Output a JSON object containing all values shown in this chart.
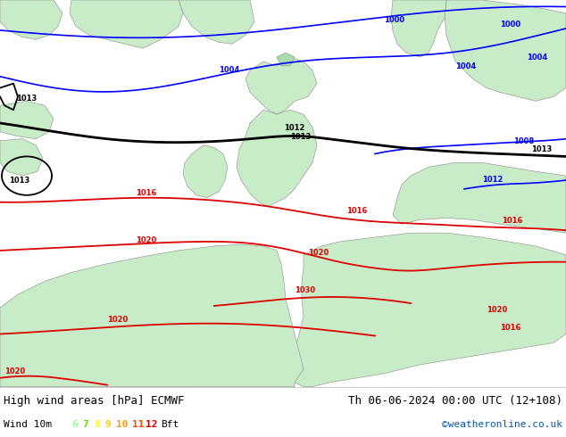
{
  "title_left": "High wind areas [hPa] ECMWF",
  "title_right": "Th 06-06-2024 00:00 UTC (12+108)",
  "subtitle_left": "Wind 10m",
  "legend_numbers": [
    "6",
    "7",
    "8",
    "9",
    "10",
    "11",
    "12"
  ],
  "legend_colors": [
    "#99ff99",
    "#66dd00",
    "#ffff00",
    "#ffcc00",
    "#ff9900",
    "#ff4400",
    "#cc0000"
  ],
  "legend_suffix": "Bft",
  "credit": "©weatheronline.co.uk",
  "credit_color": "#0055aa",
  "bg_color": "#ffffff",
  "sea_color": "#f0f0f0",
  "land_color": "#c8ecc8",
  "land_color2": "#a8dca8",
  "text_color": "#000000",
  "bottom_bar_color": "#f0f0f0",
  "blue_isobar_color": "#0000ff",
  "black_isobar_color": "#000000",
  "red_isobar_color": "#dd0000",
  "font_size_title": 9,
  "font_size_legend": 8,
  "fig_width": 6.34,
  "fig_height": 4.9,
  "dpi": 100
}
